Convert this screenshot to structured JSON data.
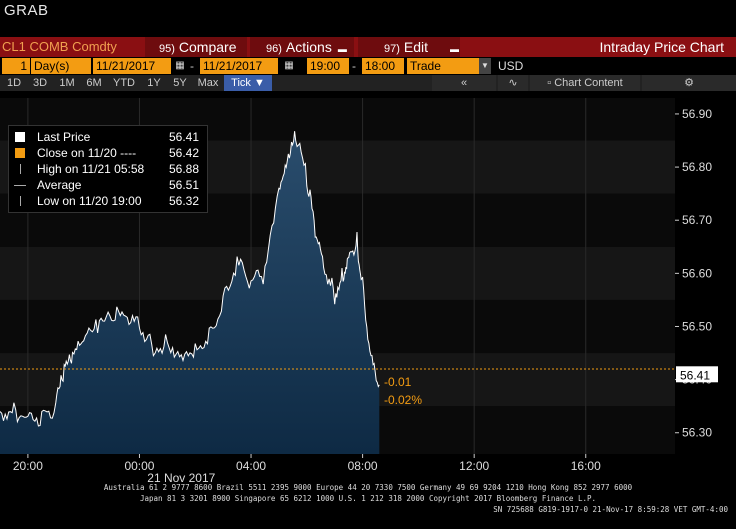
{
  "header": {
    "title": "GRAB"
  },
  "command_bar": {
    "ticker": "CL1 COMB Comdty",
    "compare": {
      "num": "95)",
      "label": "Compare"
    },
    "actions": {
      "num": "96)",
      "label": "Actions"
    },
    "edit": {
      "num": "97)",
      "label": "Edit"
    },
    "chart_name": "Intraday Price Chart"
  },
  "date_bar": {
    "period_count": "1",
    "period_unit": "Day(s)",
    "start_date": "11/21/2017",
    "end_date": "11/21/2017",
    "start_time": "19:00",
    "end_time": "18:00",
    "mode": "Trade",
    "currency": "USD"
  },
  "range_bar": {
    "ranges": [
      "1D",
      "3D",
      "1M",
      "6M",
      "YTD",
      "1Y",
      "5Y",
      "Max"
    ],
    "tick_label": "Tick ▼",
    "chart_content": "Chart Content"
  },
  "legend": {
    "rows": [
      {
        "label": "Last Price",
        "value": "56.41",
        "color": "#ffffff"
      },
      {
        "label": "Close on 11/20 ----",
        "value": "56.42",
        "color": "#f39c12"
      },
      {
        "label": "High on 11/21 05:58",
        "value": "56.88",
        "color": "#aaaaaa"
      },
      {
        "label": "Average",
        "value": "56.51",
        "color": "#aaaaaa"
      },
      {
        "label": "Low on 11/20 19:00",
        "value": "56.32",
        "color": "#aaaaaa"
      }
    ]
  },
  "annotations": {
    "change": "-0.01",
    "change_pct": "-0.02%"
  },
  "chart_data": {
    "type": "area",
    "title": "",
    "xlabel": "21 Nov 2017",
    "ylabel": "",
    "x_ticks": [
      "20:00",
      "00:00",
      "04:00",
      "08:00",
      "12:00",
      "16:00"
    ],
    "y_ticks": [
      56.3,
      56.4,
      56.5,
      56.6,
      56.7,
      56.8,
      56.9
    ],
    "ylim": [
      56.26,
      56.93
    ],
    "last_price_label": "56.41",
    "close_line": 56.42,
    "x_hours": [
      0,
      0.5,
      1,
      1.5,
      2,
      2.3,
      2.6,
      3,
      3.5,
      4,
      4.5,
      5,
      5.5,
      6,
      6.5,
      7,
      7.5,
      8,
      8.5,
      9,
      9.5,
      10,
      10.3,
      10.6,
      11,
      11.3,
      11.6,
      12,
      12.3,
      12.5,
      12.8,
      13,
      13.3,
      13.6
    ],
    "values": [
      56.34,
      56.34,
      56.33,
      56.33,
      56.35,
      56.42,
      56.44,
      56.47,
      56.5,
      56.52,
      56.52,
      56.5,
      56.46,
      56.47,
      56.45,
      56.46,
      56.48,
      56.55,
      56.62,
      56.58,
      56.6,
      56.75,
      56.8,
      56.86,
      56.78,
      56.68,
      56.62,
      56.56,
      56.6,
      56.64,
      56.66,
      56.58,
      56.44,
      56.39
    ],
    "x_range_hours": [
      -1,
      23.2
    ]
  },
  "footer": {
    "line1": "Australia 61 2 9777 8600 Brazil 5511 2395 9000 Europe 44 20 7330 7500 Germany 49 69 9204 1210 Hong Kong 852 2977 6000",
    "line2": "Japan 81 3 3201 8900      Singapore 65 6212 1000      U.S. 1 212 318 2000      Copyright 2017 Bloomberg Finance L.P.",
    "line3": "SN 725688 G819-1917-0 21-Nov-17  8:59:28 VET  GMT-4:00"
  }
}
